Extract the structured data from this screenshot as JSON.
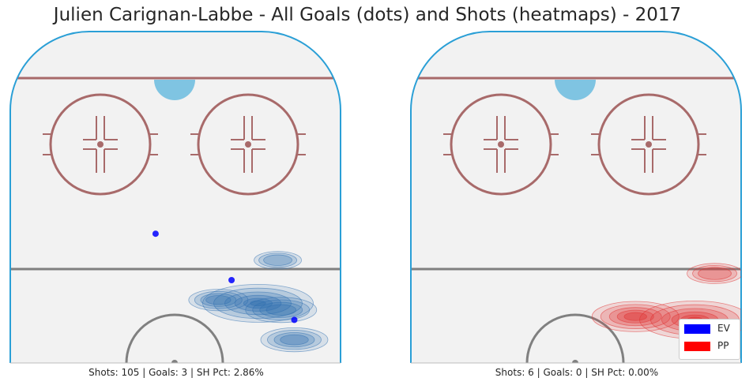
{
  "chart_data": [
    {
      "type": "scatter",
      "panel": "left",
      "xlim": [
        0,
        100
      ],
      "ylim": [
        0,
        100
      ],
      "goals": [
        {
          "x": 44,
          "y": 39,
          "strength": "EV"
        },
        {
          "x": 67,
          "y": 25,
          "strength": "EV"
        },
        {
          "x": 86,
          "y": 13,
          "strength": "EV"
        }
      ],
      "shot_density": [
        {
          "x": 75,
          "y": 18,
          "weight": 1.0,
          "strength": "EV"
        },
        {
          "x": 82,
          "y": 16,
          "weight": 0.5,
          "strength": "EV"
        },
        {
          "x": 86,
          "y": 7,
          "weight": 0.45,
          "strength": "EV"
        },
        {
          "x": 63,
          "y": 19,
          "weight": 0.35,
          "strength": "EV"
        },
        {
          "x": 81,
          "y": 31,
          "weight": 0.2,
          "strength": "EV"
        }
      ],
      "caption": "Shots: 105 | Goals: 3 | SH Pct: 2.86%"
    },
    {
      "type": "scatter",
      "panel": "right",
      "xlim": [
        0,
        100
      ],
      "ylim": [
        0,
        100
      ],
      "goals": [],
      "shot_density": [
        {
          "x": 86,
          "y": 13,
          "weight": 1.0,
          "strength": "PP"
        },
        {
          "x": 68,
          "y": 14,
          "weight": 0.7,
          "strength": "PP"
        },
        {
          "x": 92,
          "y": 27,
          "weight": 0.3,
          "strength": "PP"
        }
      ],
      "caption": "Shots: 6 | Goals: 0 | SH Pct: 0.00%"
    }
  ],
  "title": "Julien Carignan-Labbe - All Goals (dots) and Shots (heatmaps) - 2017",
  "legend": [
    {
      "label": "EV",
      "color": "#0000ff"
    },
    {
      "label": "PP",
      "color": "#ff0000"
    }
  ],
  "colors": {
    "ice": "#f2f2f2",
    "boards": "#2a9fd6",
    "red_line": "#a86a6a",
    "blue_line": "#808080",
    "crease": "#7fc4e2",
    "ev_heat": "#2f6fb0",
    "pp_heat": "#e03030"
  }
}
